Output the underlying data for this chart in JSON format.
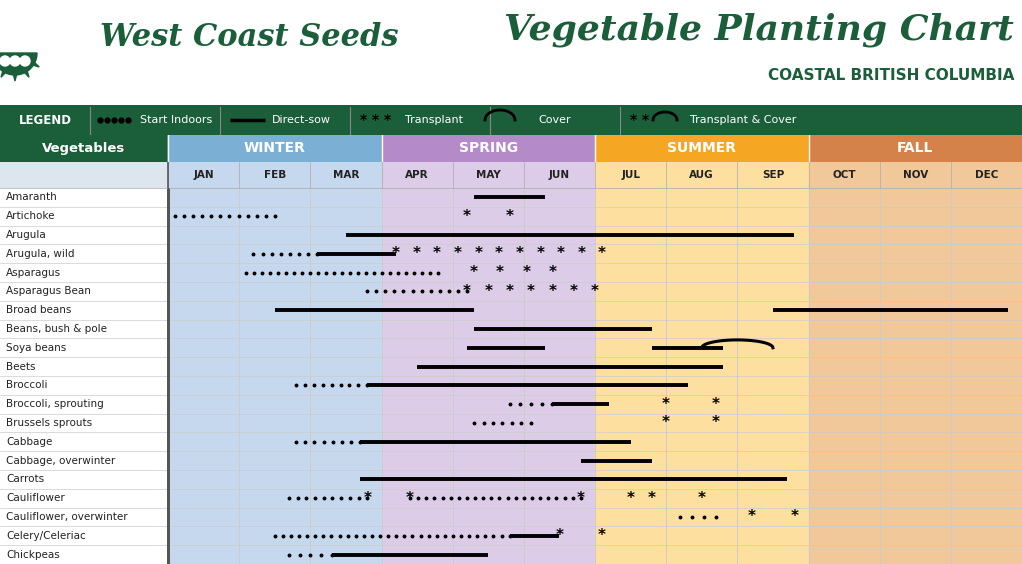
{
  "title": "Vegetable Planting Chart",
  "subtitle": "COASTAL BRITISH COLUMBIA",
  "company": "West Coast Seeds",
  "fig_width": 10.22,
  "fig_height": 5.64,
  "months": [
    "JAN",
    "FEB",
    "MAR",
    "APR",
    "MAY",
    "JUN",
    "JUL",
    "AUG",
    "SEP",
    "OCT",
    "NOV",
    "DEC"
  ],
  "seasons": [
    {
      "name": "WINTER",
      "color": "#7bafd4",
      "light": "#c5d8ed"
    },
    {
      "name": "SPRING",
      "color": "#b48ac8",
      "light": "#dccce8"
    },
    {
      "name": "SUMMER",
      "color": "#f5a623",
      "light": "#fde0a0"
    },
    {
      "name": "FALL",
      "color": "#d4824a",
      "light": "#f0c89a"
    }
  ],
  "header_bg": "#ffffff",
  "legend_bg": "#1a5e3a",
  "veg_header_bg": "#1a5e3a",
  "veg_header_text": "#ffffff",
  "row_bg": "#ffffff",
  "grid_color": "#cccccc",
  "text_color": "#222222",
  "dark_green": "#1a5e3a",
  "vegetables": [
    "Amaranth",
    "Artichoke",
    "Arugula",
    "Arugula, wild",
    "Asparagus",
    "Asparagus Bean",
    "Broad beans",
    "Beans, bush & pole",
    "Soya beans",
    "Beets",
    "Broccoli",
    "Broccoli, sprouting",
    "Brussels sprouts",
    "Cabbage",
    "Cabbage, overwinter",
    "Carrots",
    "Cauliflower",
    "Cauliflower, overwinter",
    "Celery/Celeriac",
    "Chickpeas"
  ],
  "rows": [
    {
      "veg": "Amaranth",
      "items": [
        {
          "type": "direct",
          "s": 4.3,
          "e": 5.3
        }
      ]
    },
    {
      "veg": "Artichoke",
      "items": [
        {
          "type": "indoor",
          "s": 0.1,
          "e": 1.5
        },
        {
          "type": "transplant",
          "s": 4.2,
          "e": 4.8
        }
      ]
    },
    {
      "veg": "Arugula",
      "items": [
        {
          "type": "direct",
          "s": 2.5,
          "e": 8.8
        }
      ]
    },
    {
      "veg": "Arugula, wild",
      "items": [
        {
          "type": "indoor",
          "s": 1.2,
          "e": 2.1
        },
        {
          "type": "direct",
          "s": 2.1,
          "e": 3.2
        },
        {
          "type": "transplant",
          "s": 3.2,
          "e": 6.1
        }
      ]
    },
    {
      "veg": "Asparagus",
      "items": [
        {
          "type": "indoor",
          "s": 1.1,
          "e": 3.8
        },
        {
          "type": "transplant",
          "s": 4.3,
          "e": 5.4
        }
      ]
    },
    {
      "veg": "Asparagus Bean",
      "items": [
        {
          "type": "indoor",
          "s": 2.8,
          "e": 4.2
        },
        {
          "type": "transplant",
          "s": 4.2,
          "e": 6.0
        }
      ]
    },
    {
      "veg": "Broad beans",
      "items": [
        {
          "type": "direct",
          "s": 1.5,
          "e": 4.3
        },
        {
          "type": "direct",
          "s": 8.5,
          "e": 11.8
        }
      ]
    },
    {
      "veg": "Beans, bush & pole",
      "items": [
        {
          "type": "direct",
          "s": 4.3,
          "e": 6.8
        }
      ]
    },
    {
      "veg": "Soya beans",
      "items": [
        {
          "type": "direct",
          "s": 4.2,
          "e": 5.3
        },
        {
          "type": "direct",
          "s": 6.8,
          "e": 7.8
        },
        {
          "type": "cover",
          "s": 7.5,
          "e": 8.5
        }
      ]
    },
    {
      "veg": "Beets",
      "items": [
        {
          "type": "direct",
          "s": 3.5,
          "e": 7.8
        }
      ]
    },
    {
      "veg": "Broccoli",
      "items": [
        {
          "type": "indoor",
          "s": 1.8,
          "e": 2.8
        },
        {
          "type": "direct",
          "s": 2.8,
          "e": 7.3
        }
      ]
    },
    {
      "veg": "Broccoli, sprouting",
      "items": [
        {
          "type": "indoor",
          "s": 4.8,
          "e": 5.4
        },
        {
          "type": "direct",
          "s": 5.4,
          "e": 6.2
        },
        {
          "type": "transplant",
          "s": 7.0,
          "e": 7.7
        }
      ]
    },
    {
      "veg": "Brussels sprouts",
      "items": [
        {
          "type": "indoor",
          "s": 4.3,
          "e": 5.1
        },
        {
          "type": "transplant",
          "s": 7.0,
          "e": 7.7
        }
      ]
    },
    {
      "veg": "Cabbage",
      "items": [
        {
          "type": "indoor",
          "s": 1.8,
          "e": 2.7
        },
        {
          "type": "direct",
          "s": 2.7,
          "e": 6.5
        }
      ]
    },
    {
      "veg": "Cabbage, overwinter",
      "items": [
        {
          "type": "direct",
          "s": 5.8,
          "e": 6.8
        }
      ]
    },
    {
      "veg": "Carrots",
      "items": [
        {
          "type": "direct",
          "s": 2.7,
          "e": 8.7
        }
      ]
    },
    {
      "veg": "Cauliflower",
      "items": [
        {
          "type": "indoor",
          "s": 1.7,
          "e": 2.8
        },
        {
          "type": "transplant",
          "s": 2.8,
          "e": 3.4
        },
        {
          "type": "indoor",
          "s": 3.4,
          "e": 5.8
        },
        {
          "type": "transplant",
          "s": 5.8,
          "e": 6.5
        },
        {
          "type": "transplant",
          "s": 6.8,
          "e": 7.5
        }
      ]
    },
    {
      "veg": "Cauliflower, overwinter",
      "items": [
        {
          "type": "indoor",
          "s": 7.2,
          "e": 7.7
        },
        {
          "type": "transplant",
          "s": 8.2,
          "e": 8.8
        }
      ]
    },
    {
      "veg": "Celery/Celeriac",
      "items": [
        {
          "type": "indoor",
          "s": 1.5,
          "e": 4.8
        },
        {
          "type": "direct",
          "s": 4.8,
          "e": 5.5
        },
        {
          "type": "transplant",
          "s": 5.5,
          "e": 6.1
        }
      ]
    },
    {
      "veg": "Chickpeas",
      "items": [
        {
          "type": "indoor",
          "s": 1.7,
          "e": 2.3
        },
        {
          "type": "direct",
          "s": 2.3,
          "e": 4.5
        }
      ]
    }
  ]
}
